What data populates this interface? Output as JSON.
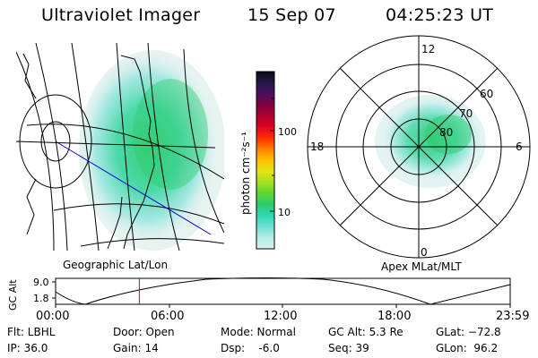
{
  "header": {
    "instrument": "Ultraviolet Imager",
    "date": "15 Sep 07",
    "time": "04:25:23 UT"
  },
  "geo_panel": {
    "label": "Geographic Lat/Lon"
  },
  "polar_panel": {
    "label": "Apex MLat/MLT",
    "mlt_labels": {
      "top": "12",
      "right": "6",
      "bottom": "0",
      "left": "18"
    },
    "lat_labels": [
      "60",
      "70",
      "80"
    ]
  },
  "colorbar": {
    "label": "photon cm⁻²s⁻¹",
    "ticks": [
      "100",
      "10"
    ],
    "colors": [
      "#d8f0ee",
      "#b4ece6",
      "#6ee0d4",
      "#2ed8b0",
      "#2ecc70",
      "#5cd634",
      "#a6e020",
      "#e4e414",
      "#ffc000",
      "#ff8000",
      "#ff3000",
      "#e00020",
      "#b00030",
      "#800040",
      "#4a1060",
      "#241848",
      "#0a0a18"
    ]
  },
  "orbit_strip": {
    "ylabel": "GC Alt",
    "yticks": [
      "9.0",
      "1.8"
    ],
    "xticks": [
      "00:00",
      "06:00",
      "12:00",
      "18:00",
      "23:59"
    ],
    "current_hour": 4.42,
    "marker_color": "#e00000"
  },
  "info": {
    "flt": "Flt: LBHL",
    "ip": "IP: 36.0",
    "door": "Door: Open",
    "gain": "Gain: 14",
    "mode": "Mode: Normal",
    "dsp": "Dsp:    -6.0",
    "gc_alt": "GC Alt: 5.3 Re",
    "seq": "Seq: 39",
    "glat": "GLat: −72.8",
    "glon": "GLon:  96.2"
  }
}
